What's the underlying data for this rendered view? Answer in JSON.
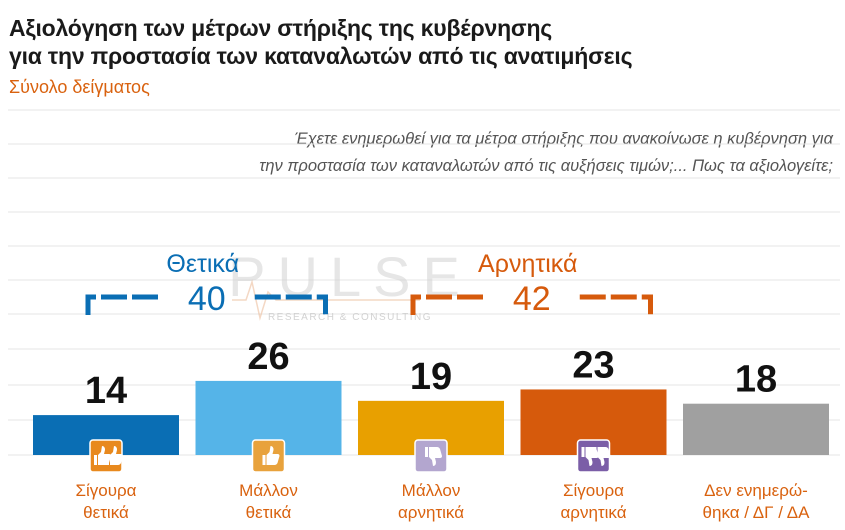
{
  "header": {
    "title_line1": "Αξιολόγηση των μέτρων στήριξης της κυβέρνησης",
    "title_line2": "για την προστασία των καταναλωτών από τις ανατιμήσεις",
    "subtitle": "Σύνολο δείγματος"
  },
  "question": {
    "line1": "Έχετε ενημερωθεί για τα μέτρα στήριξης που ανακοίνωσε η κυβέρνηση για",
    "line2": "την προστασία των καταναλωτών από τις αυξήσεις τιμών;... Πως τα αξιολογείτε;"
  },
  "watermark": {
    "name": "PULSE",
    "tagline": "RESEARCH & CONSULTING"
  },
  "colors": {
    "positive": "#0a6eb4",
    "negative": "#d65a0c",
    "gridline": "#e6e6e6",
    "text_dark": "#111111",
    "label_text": "#d9620f"
  },
  "chart_data": {
    "type": "bar",
    "categories": [
      [
        "Σίγουρα",
        "θετικά"
      ],
      [
        "Μάλλον",
        "θετικά"
      ],
      [
        "Μάλλον",
        "αρνητικά"
      ],
      [
        "Σίγουρα",
        "αρνητικά"
      ],
      [
        "Δεν ενημερώ-",
        "θηκα / ΔΓ / ΔΑ"
      ]
    ],
    "values": [
      14,
      26,
      19,
      23,
      18
    ],
    "colors": [
      "#0a6eb4",
      "#55b4e8",
      "#e8a000",
      "#d65a0c",
      "#a0a0a0"
    ],
    "icons": [
      "double-thumbs-up-icon",
      "thumbs-up-icon",
      "thumbs-down-icon",
      "double-thumbs-down-icon",
      null
    ],
    "icon_colors": [
      "#e8891e",
      "#e8a23c",
      "#b3a6cf",
      "#7b5ea7",
      null
    ],
    "groups": [
      {
        "name": "Θετικά",
        "total": 40,
        "color": "#0a6eb4",
        "bars": [
          0,
          1
        ]
      },
      {
        "name": "Αρνητικά",
        "total": 42,
        "color": "#d65a0c",
        "bars": [
          2,
          3
        ]
      }
    ],
    "ylim": [
      0,
      60
    ]
  }
}
